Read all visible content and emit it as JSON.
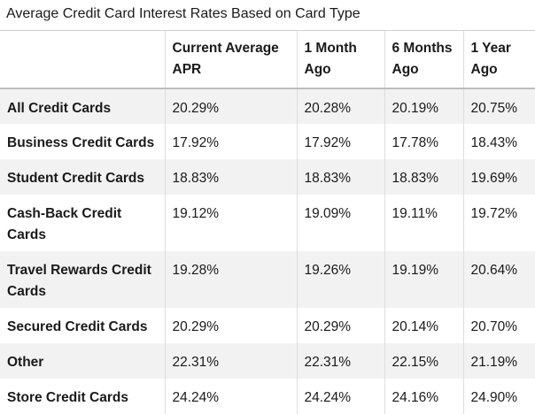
{
  "title": "Average Credit Card Interest Rates Based on Card Type",
  "columns": [
    "",
    "Current Average APR",
    "1 Month Ago",
    "6 Months Ago",
    "1 Year Ago"
  ],
  "rows": [
    [
      "All Credit Cards",
      "20.29%",
      "20.28%",
      "20.19%",
      "20.75%"
    ],
    [
      "Business Credit Cards",
      "17.92%",
      "17.92%",
      "17.78%",
      "18.43%"
    ],
    [
      "Student Credit Cards",
      "18.83%",
      "18.83%",
      "18.83%",
      "19.69%"
    ],
    [
      "Cash-Back Credit Cards",
      "19.12%",
      "19.09%",
      "19.11%",
      "19.72%"
    ],
    [
      "Travel Rewards Credit Cards",
      "19.28%",
      "19.26%",
      "19.19%",
      "20.64%"
    ],
    [
      "Secured Credit Cards",
      "20.29%",
      "20.29%",
      "20.14%",
      "20.70%"
    ],
    [
      "Other",
      "22.31%",
      "22.31%",
      "22.15%",
      "21.19%"
    ],
    [
      "Store Credit Cards",
      "24.24%",
      "24.24%",
      "24.16%",
      "24.90%"
    ]
  ]
}
